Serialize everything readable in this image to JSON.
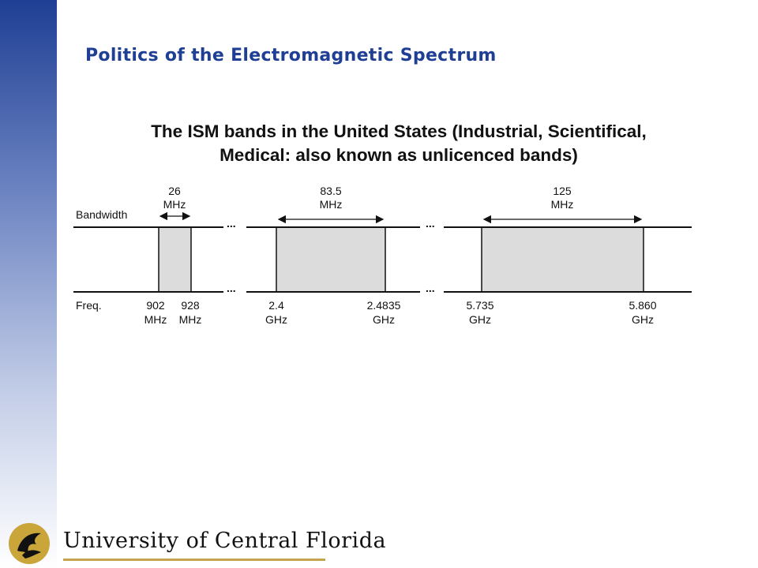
{
  "slide": {
    "title": "Politics of the Electromagnetic Spectrum",
    "subtitle_lines": [
      "The ISM bands in the United States (Industrial, Scientifical,",
      "Medical: also known as unlicenced bands)"
    ]
  },
  "diagram": {
    "bandwidth_label": "Bandwidth",
    "freq_label": "Freq.",
    "ellipsis": "...",
    "band_fill": "#dcdcdc",
    "bands": [
      {
        "bandwidth_value": "26",
        "bandwidth_unit": "MHz",
        "start_value": "902",
        "start_unit": "MHz",
        "end_value": "928",
        "end_unit": "MHz"
      },
      {
        "bandwidth_value": "83.5",
        "bandwidth_unit": "MHz",
        "start_value": "2.4",
        "start_unit": "GHz",
        "end_value": "2.4835",
        "end_unit": "GHz"
      },
      {
        "bandwidth_value": "125",
        "bandwidth_unit": "MHz",
        "start_value": "5.735",
        "start_unit": "GHz",
        "end_value": "5.860",
        "end_unit": "GHz"
      }
    ]
  },
  "footer": {
    "university_name": "University of Central Florida",
    "accent_color": "#c5a44e",
    "logo_icon": "pegasus-logo-icon"
  }
}
